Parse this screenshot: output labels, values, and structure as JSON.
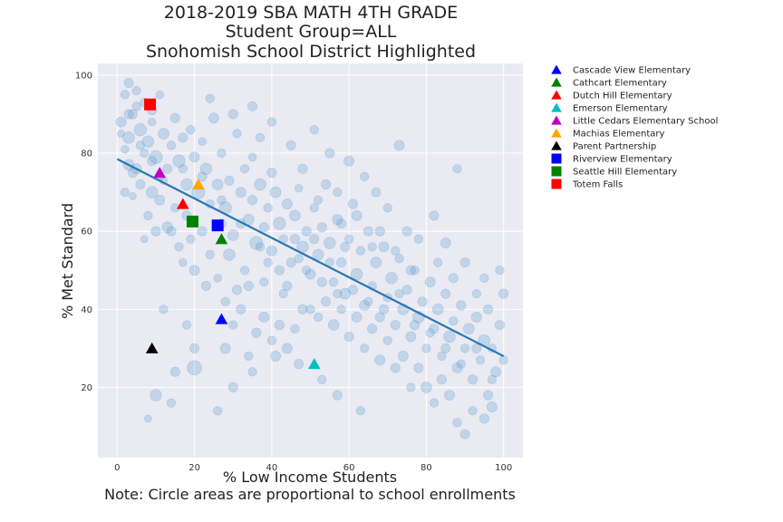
{
  "chart_data": {
    "type": "scatter",
    "title_lines": [
      "2018-2019 SBA MATH 4TH GRADE",
      "Student Group=ALL",
      "Snohomish School District Highlighted"
    ],
    "xlabel": "% Low Income Students",
    "ylabel": "% Met Standard",
    "note": "Note: Circle areas are proportional to school enrollments",
    "xlim": [
      -5,
      105
    ],
    "ylim": [
      2,
      103
    ],
    "x_ticks": [
      0,
      20,
      40,
      60,
      80,
      100
    ],
    "y_ticks": [
      20,
      40,
      60,
      80,
      100
    ],
    "x_tick_labels": [
      "0",
      "20",
      "40",
      "60",
      "80",
      "100"
    ],
    "y_tick_labels": [
      "20",
      "40",
      "60",
      "80",
      "100"
    ],
    "grid": true,
    "background_color": "#eaeaf2",
    "trend_line": {
      "x": [
        0,
        100
      ],
      "y": [
        78.5,
        28
      ],
      "color": "#2878b5"
    },
    "background_series": {
      "name": "",
      "color": "#5b9bd0",
      "points": [
        [
          1,
          88,
          1.4
        ],
        [
          2,
          95,
          1.2
        ],
        [
          3,
          84,
          1.6
        ],
        [
          2,
          81,
          1.1
        ],
        [
          4,
          90,
          1.3
        ],
        [
          3,
          77,
          1.5
        ],
        [
          5,
          92,
          1.2
        ],
        [
          1,
          85,
          1.0
        ],
        [
          6,
          86,
          1.7
        ],
        [
          7,
          80,
          1.2
        ],
        [
          5,
          76,
          1.4
        ],
        [
          8,
          83,
          1.6
        ],
        [
          9,
          88,
          1.1
        ],
        [
          6,
          72,
          1.3
        ],
        [
          10,
          79,
          1.8
        ],
        [
          4,
          69,
          1.0
        ],
        [
          3,
          98,
          1.3
        ],
        [
          7,
          93,
          1.2
        ],
        [
          11,
          95,
          1.1
        ],
        [
          12,
          85,
          1.5
        ],
        [
          13,
          76,
          1.3
        ],
        [
          9,
          70,
          1.6
        ],
        [
          8,
          64,
          1.2
        ],
        [
          11,
          68,
          1.4
        ],
        [
          14,
          82,
          1.2
        ],
        [
          15,
          89,
          1.3
        ],
        [
          16,
          78,
          1.7
        ],
        [
          12,
          73,
          1.1
        ],
        [
          10,
          60,
          1.3
        ],
        [
          7,
          58,
          1.0
        ],
        [
          13,
          61,
          1.5
        ],
        [
          15,
          66,
          1.2
        ],
        [
          17,
          84,
          1.3
        ],
        [
          18,
          72,
          1.6
        ],
        [
          19,
          86,
          1.2
        ],
        [
          20,
          79,
          1.4
        ],
        [
          21,
          70,
          1.8
        ],
        [
          16,
          56,
          1.2
        ],
        [
          18,
          64,
          1.3
        ],
        [
          22,
          83,
          1.1
        ],
        [
          23,
          76,
          1.6
        ],
        [
          24,
          67,
          1.2
        ],
        [
          25,
          89,
          1.4
        ],
        [
          26,
          72,
          1.5
        ],
        [
          22,
          60,
          1.3
        ],
        [
          24,
          54,
          1.2
        ],
        [
          20,
          50,
          1.4
        ],
        [
          17,
          52,
          1.1
        ],
        [
          27,
          80,
          1.2
        ],
        [
          28,
          66,
          1.7
        ],
        [
          29,
          73,
          1.3
        ],
        [
          30,
          59,
          1.5
        ],
        [
          31,
          85,
          1.2
        ],
        [
          27,
          62,
          1.3
        ],
        [
          26,
          48,
          1.1
        ],
        [
          29,
          54,
          1.6
        ],
        [
          32,
          70,
          1.4
        ],
        [
          33,
          76,
          1.2
        ],
        [
          34,
          63,
          1.5
        ],
        [
          35,
          68,
          1.3
        ],
        [
          36,
          57,
          1.8
        ],
        [
          33,
          50,
          1.2
        ],
        [
          31,
          45,
          1.3
        ],
        [
          35,
          79,
          1.1
        ],
        [
          37,
          72,
          1.6
        ],
        [
          38,
          61,
          1.3
        ],
        [
          39,
          66,
          1.2
        ],
        [
          40,
          55,
          1.4
        ],
        [
          41,
          70,
          1.5
        ],
        [
          38,
          47,
          1.2
        ],
        [
          40,
          75,
          1.3
        ],
        [
          42,
          62,
          1.7
        ],
        [
          43,
          58,
          1.2
        ],
        [
          44,
          67,
          1.4
        ],
        [
          45,
          52,
          1.3
        ],
        [
          46,
          64,
          1.5
        ],
        [
          43,
          44,
          1.2
        ],
        [
          47,
          71,
          1.1
        ],
        [
          48,
          56,
          1.6
        ],
        [
          49,
          60,
          1.3
        ],
        [
          50,
          49,
          1.4
        ],
        [
          51,
          66,
          1.2
        ],
        [
          52,
          54,
          1.5
        ],
        [
          53,
          61,
          1.3
        ],
        [
          50,
          40,
          1.2
        ],
        [
          54,
          72,
          1.3
        ],
        [
          55,
          57,
          1.6
        ],
        [
          56,
          47,
          1.2
        ],
        [
          57,
          63,
          1.4
        ],
        [
          58,
          52,
          1.3
        ],
        [
          59,
          44,
          1.5
        ],
        [
          60,
          58,
          1.2
        ],
        [
          61,
          67,
          1.3
        ],
        [
          62,
          49,
          1.6
        ],
        [
          63,
          55,
          1.2
        ],
        [
          64,
          41,
          1.4
        ],
        [
          65,
          60,
          1.3
        ],
        [
          66,
          46,
          1.2
        ],
        [
          67,
          52,
          1.5
        ],
        [
          68,
          38,
          1.3
        ],
        [
          69,
          56,
          1.4
        ],
        [
          70,
          43,
          1.2
        ],
        [
          71,
          48,
          1.6
        ],
        [
          72,
          36,
          1.3
        ],
        [
          73,
          53,
          1.2
        ],
        [
          74,
          40,
          1.5
        ],
        [
          75,
          45,
          1.3
        ],
        [
          76,
          33,
          1.4
        ],
        [
          77,
          50,
          1.2
        ],
        [
          78,
          38,
          1.6
        ],
        [
          79,
          42,
          1.3
        ],
        [
          80,
          30,
          1.2
        ],
        [
          81,
          47,
          1.4
        ],
        [
          82,
          35,
          1.3
        ],
        [
          83,
          40,
          1.5
        ],
        [
          84,
          28,
          1.2
        ],
        [
          85,
          44,
          1.3
        ],
        [
          86,
          33,
          1.6
        ],
        [
          87,
          37,
          1.2
        ],
        [
          88,
          25,
          1.4
        ],
        [
          89,
          41,
          1.3
        ],
        [
          90,
          30,
          1.2
        ],
        [
          91,
          35,
          1.5
        ],
        [
          92,
          22,
          1.3
        ],
        [
          93,
          38,
          1.4
        ],
        [
          94,
          27,
          1.2
        ],
        [
          95,
          32,
          1.6
        ],
        [
          96,
          18,
          1.3
        ],
        [
          97,
          30,
          1.2
        ],
        [
          98,
          24,
          1.4
        ],
        [
          99,
          36,
          1.3
        ],
        [
          100,
          27,
          1.2
        ],
        [
          100,
          44,
          1.3
        ],
        [
          99,
          50,
          1.2
        ],
        [
          97,
          15,
          1.4
        ],
        [
          95,
          12,
          1.3
        ],
        [
          92,
          14,
          1.2
        ],
        [
          90,
          8,
          1.3
        ],
        [
          88,
          11,
          1.2
        ],
        [
          86,
          18,
          1.4
        ],
        [
          84,
          22,
          1.3
        ],
        [
          82,
          16,
          1.2
        ],
        [
          80,
          20,
          1.5
        ],
        [
          78,
          25,
          1.3
        ],
        [
          76,
          20,
          1.2
        ],
        [
          74,
          28,
          1.4
        ],
        [
          72,
          25,
          1.3
        ],
        [
          70,
          32,
          1.2
        ],
        [
          68,
          27,
          1.4
        ],
        [
          66,
          35,
          1.3
        ],
        [
          64,
          30,
          1.2
        ],
        [
          62,
          38,
          1.4
        ],
        [
          60,
          33,
          1.3
        ],
        [
          58,
          40,
          1.2
        ],
        [
          56,
          36,
          1.5
        ],
        [
          54,
          42,
          1.3
        ],
        [
          52,
          38,
          1.2
        ],
        [
          48,
          40,
          1.3
        ],
        [
          46,
          35,
          1.2
        ],
        [
          44,
          30,
          1.4
        ],
        [
          42,
          36,
          1.3
        ],
        [
          40,
          32,
          1.2
        ],
        [
          38,
          38,
          1.4
        ],
        [
          36,
          34,
          1.3
        ],
        [
          34,
          28,
          1.2
        ],
        [
          32,
          40,
          1.3
        ],
        [
          30,
          36,
          1.2
        ],
        [
          28,
          30,
          1.4
        ],
        [
          20,
          30,
          1.3
        ],
        [
          18,
          36,
          1.2
        ],
        [
          15,
          24,
          1.3
        ],
        [
          12,
          40,
          1.2
        ],
        [
          10,
          18,
          1.6
        ],
        [
          14,
          16,
          1.2
        ],
        [
          8,
          12,
          1.0
        ],
        [
          20,
          25,
          2.0
        ],
        [
          26,
          14,
          1.2
        ],
        [
          30,
          20,
          1.3
        ],
        [
          35,
          24,
          1.2
        ],
        [
          41,
          28,
          1.4
        ],
        [
          47,
          26,
          1.3
        ],
        [
          53,
          22,
          1.2
        ],
        [
          57,
          18,
          1.3
        ],
        [
          63,
          14,
          1.2
        ],
        [
          73,
          82,
          1.4
        ],
        [
          88,
          76,
          1.2
        ],
        [
          82,
          64,
          1.3
        ],
        [
          78,
          58,
          1.2
        ],
        [
          85,
          57,
          1.4
        ],
        [
          90,
          52,
          1.3
        ],
        [
          95,
          48,
          1.2
        ],
        [
          75,
          60,
          1.3
        ],
        [
          70,
          66,
          1.2
        ],
        [
          67,
          70,
          1.3
        ],
        [
          64,
          74,
          1.2
        ],
        [
          60,
          78,
          1.4
        ],
        [
          55,
          80,
          1.3
        ],
        [
          51,
          86,
          1.2
        ],
        [
          45,
          82,
          1.3
        ],
        [
          40,
          88,
          1.2
        ],
        [
          35,
          92,
          1.3
        ],
        [
          24,
          94,
          1.2
        ],
        [
          30,
          90,
          1.3
        ],
        [
          37,
          84,
          1.2
        ],
        [
          48,
          76,
          1.3
        ],
        [
          57,
          70,
          1.2
        ],
        [
          62,
          64,
          1.4
        ],
        [
          68,
          60,
          1.3
        ],
        [
          72,
          55,
          1.2
        ],
        [
          76,
          50,
          1.3
        ],
        [
          83,
          52,
          1.2
        ],
        [
          87,
          48,
          1.3
        ],
        [
          93,
          44,
          1.2
        ],
        [
          96,
          40,
          1.3
        ],
        [
          66,
          56,
          1.2
        ],
        [
          58,
          62,
          1.3
        ],
        [
          52,
          68,
          1.2
        ],
        [
          46,
          58,
          1.3
        ],
        [
          39,
          52,
          1.2
        ],
        [
          34,
          46,
          1.3
        ],
        [
          28,
          42,
          1.2
        ],
        [
          23,
          46,
          1.3
        ],
        [
          19,
          58,
          1.2
        ],
        [
          14,
          60,
          1.3
        ],
        [
          11,
          74,
          1.2
        ],
        [
          9,
          78,
          1.3
        ],
        [
          6,
          82,
          1.2
        ],
        [
          4,
          75,
          1.3
        ],
        [
          2,
          70,
          1.2
        ],
        [
          3,
          90,
          1.3
        ],
        [
          5,
          96,
          1.2
        ],
        [
          9,
          91,
          1.3
        ],
        [
          49,
          50,
          1.2
        ],
        [
          53,
          47,
          1.3
        ],
        [
          57,
          44,
          1.2
        ],
        [
          61,
          45,
          1.3
        ],
        [
          65,
          42,
          1.2
        ],
        [
          69,
          40,
          1.3
        ],
        [
          73,
          44,
          1.2
        ],
        [
          77,
          36,
          1.3
        ],
        [
          81,
          34,
          1.2
        ],
        [
          85,
          30,
          1.3
        ],
        [
          89,
          26,
          1.2
        ],
        [
          93,
          30,
          1.3
        ],
        [
          97,
          22,
          1.2
        ],
        [
          42,
          50,
          1.3
        ],
        [
          37,
          56,
          1.2
        ],
        [
          32,
          62,
          1.3
        ],
        [
          27,
          68,
          1.2
        ],
        [
          22,
          74,
          1.3
        ],
        [
          17,
          76,
          1.2
        ],
        [
          44,
          46,
          1.3
        ],
        [
          47,
          53,
          1.2
        ],
        [
          51,
          58,
          1.3
        ],
        [
          55,
          52,
          1.2
        ],
        [
          59,
          56,
          1.3
        ]
      ]
    },
    "legend": {
      "placement": "upper-right-outside",
      "entries": [
        {
          "label": "Cascade View Elementary",
          "color": "#0000ff",
          "marker": "triangle",
          "x": 27,
          "y": 37.5
        },
        {
          "label": "Cathcart Elementary",
          "color": "#008000",
          "marker": "triangle",
          "x": 27,
          "y": 58
        },
        {
          "label": "Dutch Hill Elementary",
          "color": "#ff0000",
          "marker": "triangle",
          "x": 17,
          "y": 67
        },
        {
          "label": "Emerson Elementary",
          "color": "#00bfbf",
          "marker": "triangle",
          "x": 51,
          "y": 26
        },
        {
          "label": "Little Cedars Elementary School",
          "color": "#bf00bf",
          "marker": "triangle",
          "x": 11,
          "y": 75
        },
        {
          "label": "Machias Elementary",
          "color": "#ffa500",
          "marker": "triangle",
          "x": 21,
          "y": 72
        },
        {
          "label": "Parent Partnership",
          "color": "#000000",
          "marker": "triangle",
          "x": 9,
          "y": 30
        },
        {
          "label": "Riverview Elementary",
          "color": "#0000ff",
          "marker": "square",
          "x": 26,
          "y": 61.5
        },
        {
          "label": "Seattle Hill Elementary",
          "color": "#008000",
          "marker": "square",
          "x": 19.5,
          "y": 62.5
        },
        {
          "label": "Totem Falls",
          "color": "#ff0000",
          "marker": "square",
          "x": 8.5,
          "y": 92.5
        }
      ]
    }
  }
}
